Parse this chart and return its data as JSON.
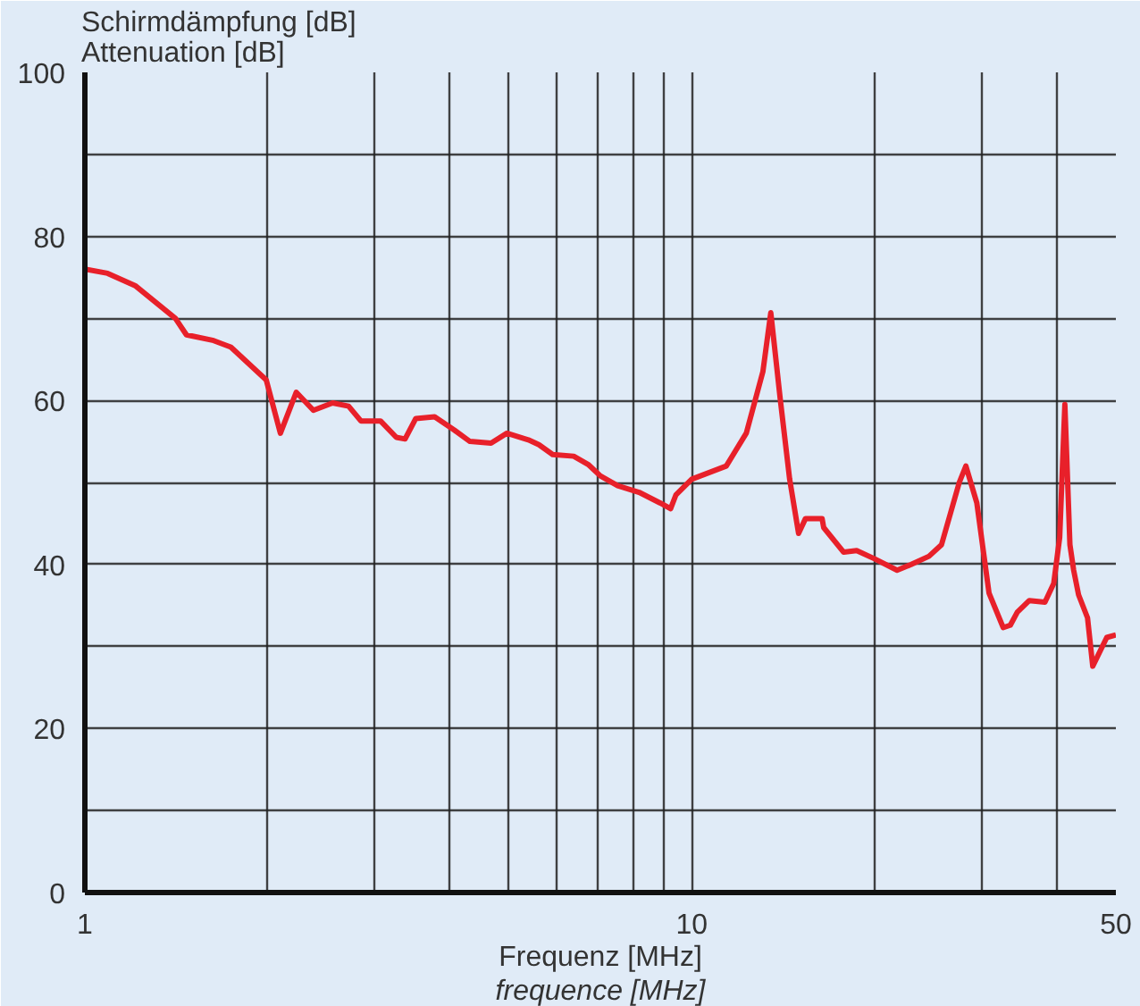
{
  "chart_data": {
    "type": "line",
    "ylabel": "Schirmdämpfung [dB]\nAttenuation [dB]",
    "xlabel": "Frequenz [MHz]\nfrequence [MHz]",
    "log": "x",
    "grid": true,
    "marker": "none",
    "line_style": "solid",
    "xlim": [
      1,
      50
    ],
    "ylim": [
      0,
      100
    ],
    "xticks": [
      1,
      {
        "value": 2,
        "label": null
      },
      {
        "value": 3,
        "label": null
      },
      {
        "value": 4,
        "label": null
      },
      {
        "value": 5,
        "label": null
      },
      {
        "value": 6,
        "label": null
      },
      {
        "value": 7,
        "label": null
      },
      {
        "value": 8,
        "label": null
      },
      {
        "value": 9,
        "label": null
      },
      10,
      {
        "value": 20,
        "label": null
      },
      {
        "value": 30,
        "label": null
      },
      {
        "value": 40,
        "label": null
      },
      50
    ],
    "yticks": [
      0,
      {
        "value": 10,
        "label": null
      },
      20,
      {
        "value": 30,
        "label": null
      },
      40,
      {
        "value": 50,
        "label": null
      },
      60,
      {
        "value": 70,
        "label": null
      },
      80,
      {
        "value": 90,
        "label": null
      },
      100
    ],
    "series": [
      {
        "color": "#e8202a",
        "x": [
          1,
          1.09,
          1.21,
          1.41,
          1.47,
          1.63,
          1.74,
          1.99,
          2.1,
          2.23,
          2.38,
          2.56,
          2.72,
          2.85,
          3.07,
          3.26,
          3.37,
          3.51,
          3.77,
          4.06,
          4.31,
          4.67,
          4.96,
          5.38,
          5.6,
          5.9,
          6.39,
          6.75,
          7.07,
          7.55,
          8.19,
          8.87,
          9.23,
          9.42,
          10,
          11.4,
          12.3,
          13.1,
          13.5,
          14.0,
          14.5,
          15.0,
          15.4,
          16.4,
          16.5,
          17.8,
          18.7,
          20,
          21.8,
          23,
          24.6,
          25.8,
          27.6,
          28.3,
          29.5,
          30.9,
          32.6,
          33.5,
          34.4,
          36,
          38.2,
          39.5,
          40.4,
          41.2,
          42,
          42.6,
          43.4,
          44.9,
          45.8,
          48.3,
          50
        ],
        "values": [
          76,
          75.5,
          74,
          70,
          68,
          67.3,
          66.5,
          62.5,
          56,
          61,
          58.8,
          59.7,
          59.3,
          57.5,
          57.5,
          55.5,
          55.3,
          57.8,
          58,
          56.4,
          55,
          54.8,
          56,
          55.2,
          54.6,
          53.4,
          53.2,
          52.2,
          50.8,
          49.6,
          48.8,
          47.5,
          46.8,
          48.5,
          50.4,
          52,
          56,
          63.5,
          70.7,
          60,
          50.4,
          43.8,
          45.6,
          45.6,
          44.5,
          41.5,
          41.7,
          40.7,
          39.3,
          40,
          41,
          42.4,
          50,
          52,
          47.5,
          36.5,
          32.3,
          32.6,
          34.2,
          35.6,
          35.4,
          37.7,
          43.3,
          59.5,
          42.4,
          39.3,
          36.3,
          33.5,
          27.6,
          31.1,
          31.4
        ]
      }
    ]
  }
}
